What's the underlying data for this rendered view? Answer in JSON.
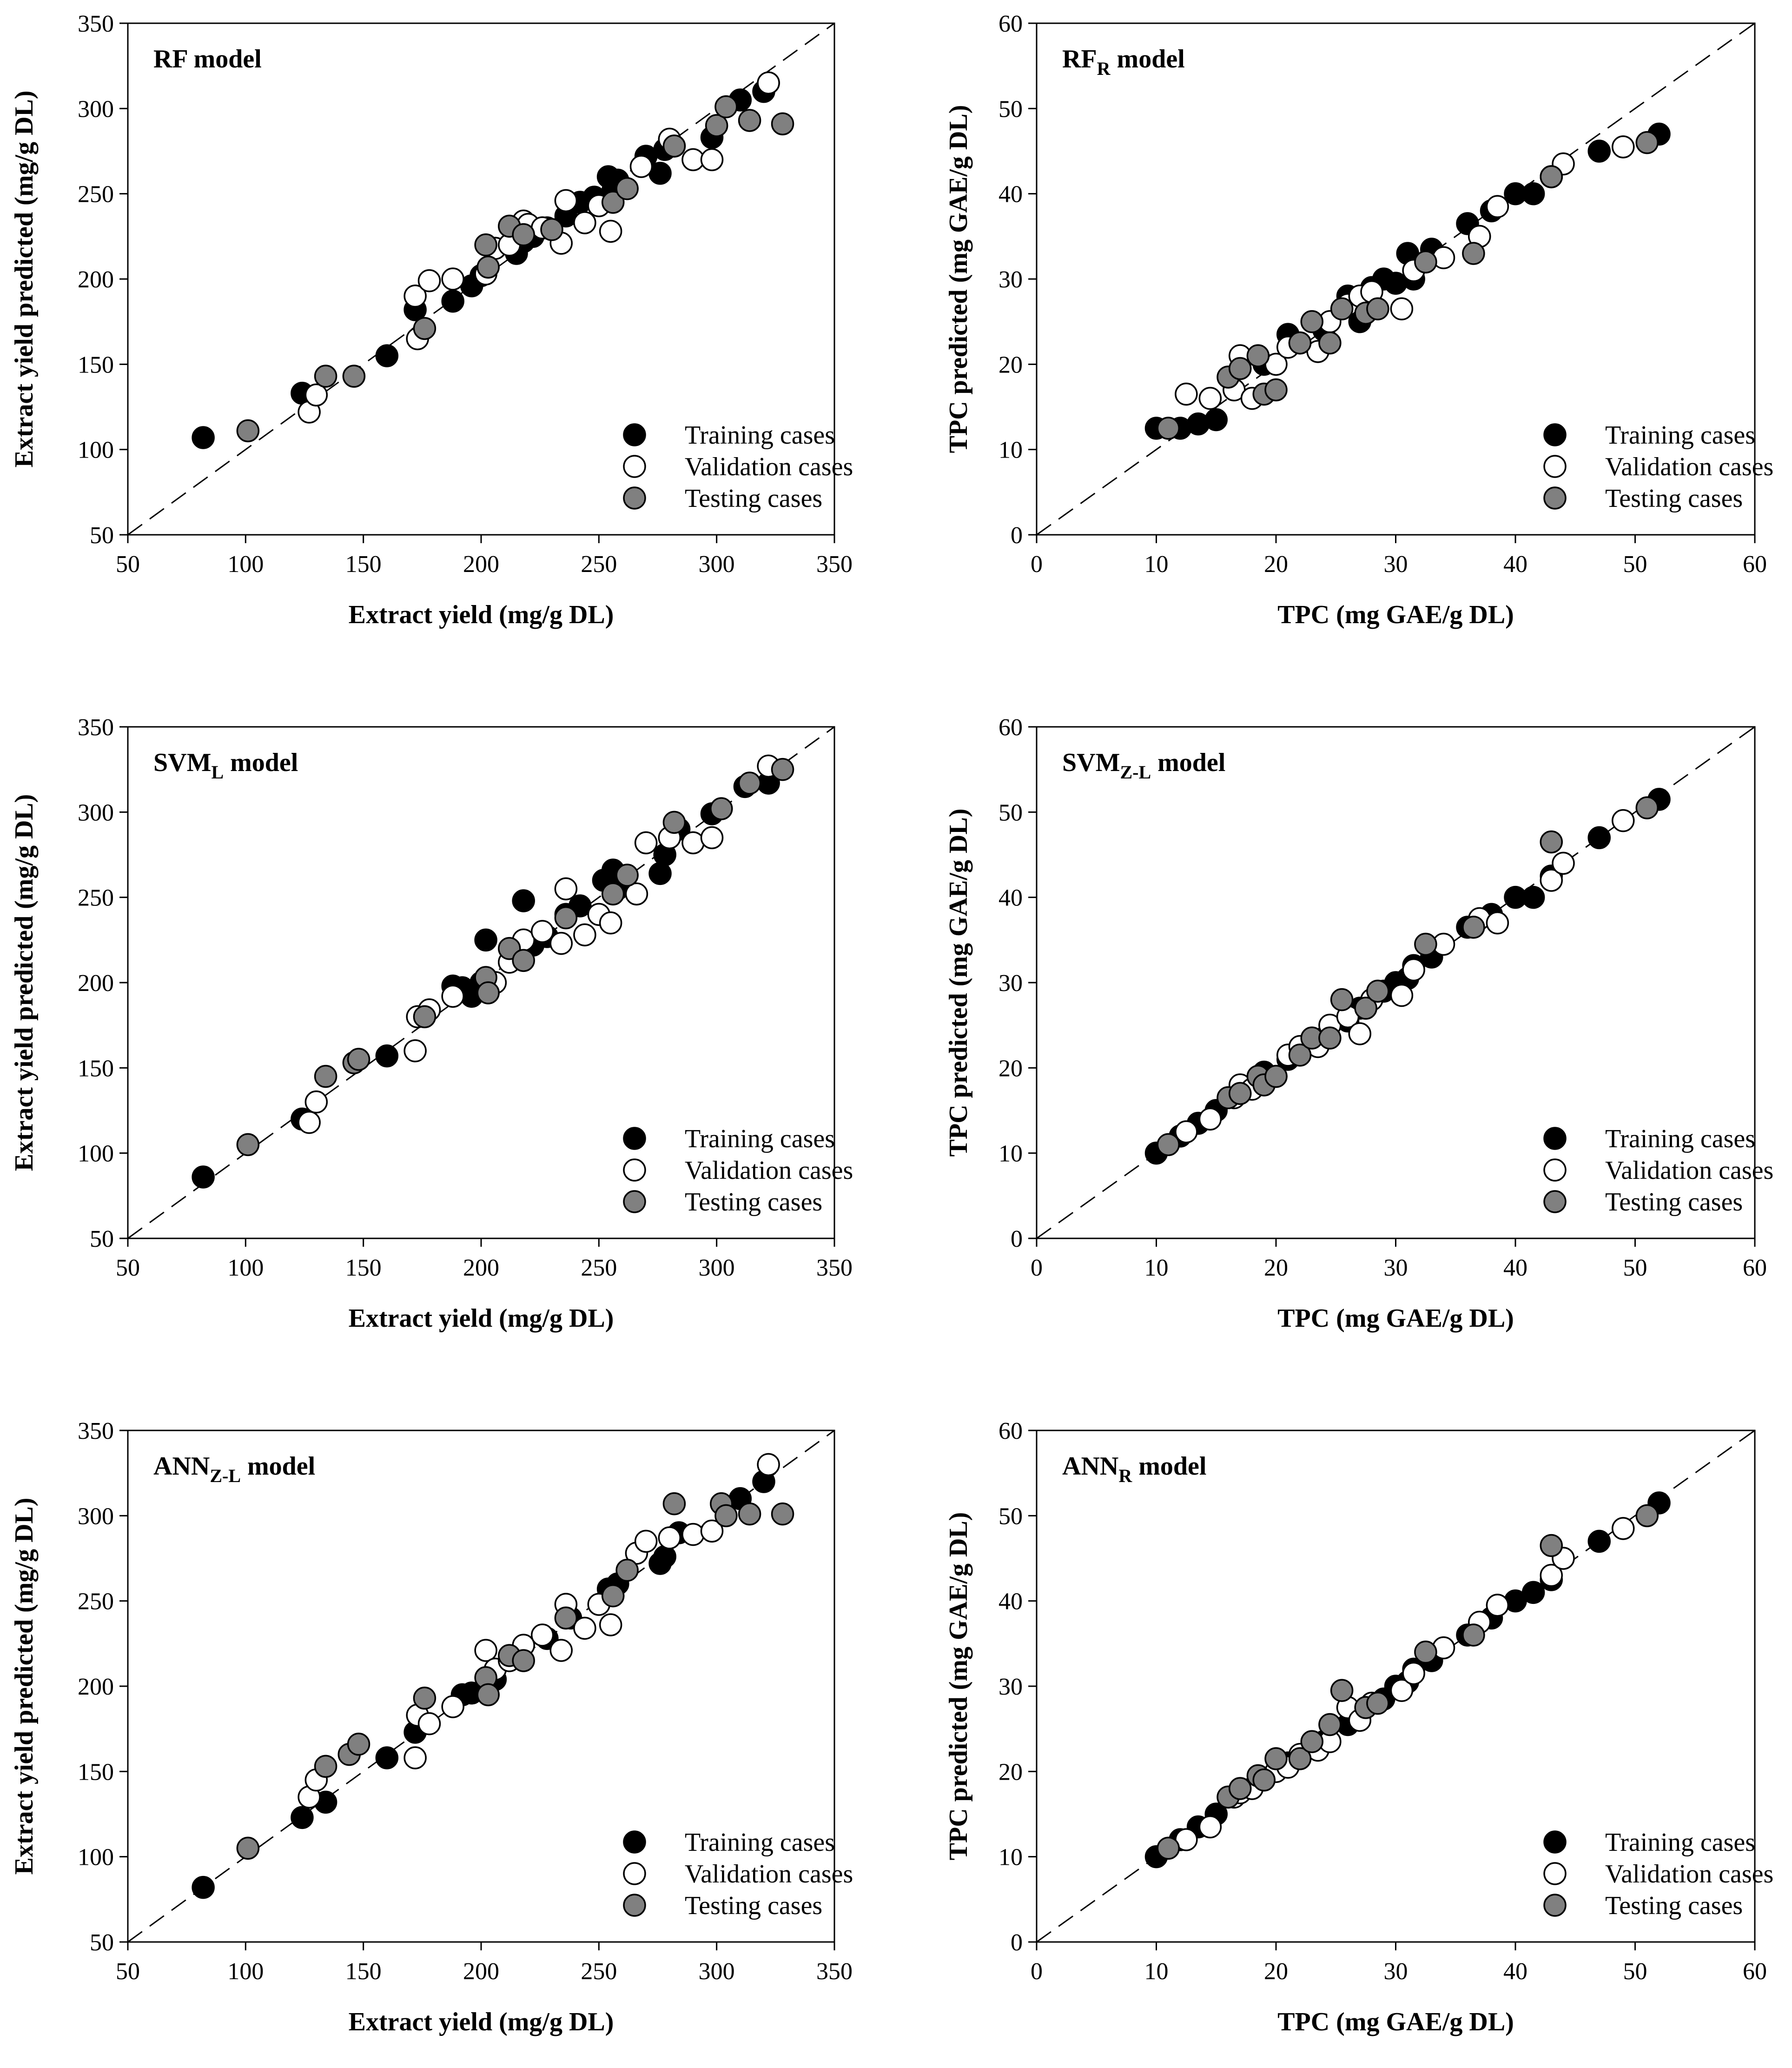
{
  "legend": {
    "training": "Training cases",
    "validation": "Validation cases",
    "testing": "Testing cases"
  },
  "colors": {
    "training": "#000000",
    "validation": "#ffffff",
    "testing": "#808080",
    "outline": "#000000"
  },
  "chart_data": [
    {
      "type": "scatter",
      "title": {
        "main": "RF model",
        "sub": "",
        "rest": ""
      },
      "xlabel": "Extract yield (mg/g DL)",
      "ylabel": "Extract yield predicted (mg/g DL)",
      "xlim": [
        50,
        350
      ],
      "ylim": [
        50,
        350
      ],
      "ticks": [
        50,
        100,
        150,
        200,
        250,
        300,
        350
      ],
      "series": [
        {
          "name": "training",
          "x": [
            82,
            124,
            160,
            172,
            188,
            196,
            200,
            215,
            218,
            222,
            228,
            236,
            242,
            248,
            254,
            256,
            258,
            270,
            276,
            278,
            282,
            298,
            310,
            320,
            322
          ],
          "y": [
            107,
            133,
            155,
            182,
            187,
            196,
            202,
            215,
            222,
            225,
            230,
            237,
            245,
            248,
            260,
            252,
            258,
            272,
            262,
            276,
            278,
            283,
            305,
            310,
            315
          ]
        },
        {
          "name": "validation",
          "x": [
            127,
            130,
            172,
            173,
            178,
            188,
            202,
            206,
            212,
            218,
            220,
            226,
            234,
            236,
            244,
            250,
            255,
            268,
            280,
            290,
            298,
            322
          ],
          "y": [
            122,
            132,
            190,
            165,
            199,
            200,
            203,
            218,
            220,
            234,
            232,
            230,
            221,
            246,
            233,
            243,
            228,
            266,
            282,
            270,
            270,
            315
          ]
        },
        {
          "name": "testing",
          "x": [
            101,
            134,
            146,
            176,
            202,
            203,
            212,
            218,
            230,
            256,
            262,
            282,
            300,
            304,
            314,
            328
          ],
          "y": [
            111,
            143,
            143,
            171,
            220,
            207,
            231,
            226,
            229,
            245,
            253,
            278,
            290,
            301,
            293,
            291
          ]
        }
      ]
    },
    {
      "type": "scatter",
      "title": {
        "main": "RF",
        "sub": "R",
        "rest": " model"
      },
      "xlabel": "TPC (mg GAE/g DL)",
      "ylabel": "TPC predicted (mg GAE/g DL)",
      "xlim": [
        0,
        60
      ],
      "ylim": [
        0,
        60
      ],
      "ticks": [
        0,
        10,
        20,
        30,
        40,
        50,
        60
      ],
      "series": [
        {
          "name": "training",
          "x": [
            10,
            12,
            13.5,
            15,
            19,
            21,
            24,
            26,
            27,
            28,
            29,
            30,
            31,
            31.5,
            33,
            36,
            38,
            40,
            41.5,
            43,
            47,
            52
          ],
          "y": [
            12.5,
            12.5,
            13,
            13.5,
            20,
            23.5,
            24,
            28,
            25,
            29,
            30,
            29.5,
            33,
            30,
            33.5,
            36.5,
            38,
            40,
            40,
            42,
            45,
            47
          ]
        },
        {
          "name": "validation",
          "x": [
            12.5,
            14.5,
            16.5,
            17,
            18,
            20,
            21,
            22,
            23.5,
            24.5,
            26,
            27,
            28,
            30.5,
            31.5,
            34,
            37,
            38.5,
            43,
            44,
            49
          ],
          "y": [
            16.5,
            16,
            17,
            21,
            16,
            20,
            22,
            22.5,
            21.5,
            25,
            27,
            28,
            28.5,
            26.5,
            31,
            32.5,
            35,
            38.5,
            42,
            43.5,
            45.5
          ]
        },
        {
          "name": "testing",
          "x": [
            11,
            16,
            17,
            18.5,
            19,
            20,
            22,
            23,
            24.5,
            25.5,
            27.5,
            28.5,
            32.5,
            36.5,
            43,
            51
          ],
          "y": [
            12.5,
            18.5,
            19.5,
            21,
            16.5,
            17,
            22.5,
            25,
            22.5,
            26.5,
            26,
            26.5,
            32,
            33,
            42,
            46
          ]
        }
      ]
    },
    {
      "type": "scatter",
      "title": {
        "main": "SVM",
        "sub": "L",
        "rest": " model"
      },
      "xlabel": "Extract yield (mg/g DL)",
      "ylabel": "Extract yield predicted (mg/g DL)",
      "xlim": [
        50,
        350
      ],
      "ylim": [
        50,
        350
      ],
      "ticks": [
        50,
        100,
        150,
        200,
        250,
        300,
        350
      ],
      "series": [
        {
          "name": "training",
          "x": [
            82,
            124,
            160,
            188,
            192,
            196,
            200,
            202,
            218,
            222,
            228,
            236,
            242,
            252,
            256,
            258,
            276,
            278,
            284,
            298,
            312,
            322
          ],
          "y": [
            86,
            120,
            157,
            198,
            197,
            192,
            200,
            225,
            248,
            222,
            227,
            240,
            245,
            260,
            266,
            255,
            264,
            275,
            290,
            299,
            315,
            317
          ]
        },
        {
          "name": "validation",
          "x": [
            127,
            130,
            172,
            173,
            178,
            188,
            202,
            206,
            212,
            218,
            226,
            234,
            236,
            244,
            250,
            255,
            266,
            270,
            280,
            290,
            298,
            322
          ],
          "y": [
            118,
            130,
            160,
            180,
            184,
            192,
            202,
            200,
            212,
            225,
            230,
            223,
            255,
            228,
            240,
            235,
            252,
            282,
            285,
            282,
            285,
            327
          ]
        },
        {
          "name": "testing",
          "x": [
            101,
            134,
            146,
            148,
            176,
            202,
            203,
            212,
            218,
            236,
            256,
            262,
            282,
            302,
            314,
            328
          ],
          "y": [
            105,
            145,
            153,
            155,
            180,
            203,
            194,
            220,
            213,
            238,
            252,
            263,
            294,
            302,
            317,
            325
          ]
        }
      ]
    },
    {
      "type": "scatter",
      "title": {
        "main": "SVM",
        "sub": "Z-L",
        "rest": " model"
      },
      "xlabel": "TPC (mg GAE/g DL)",
      "ylabel": "TPC predicted (mg GAE/g DL)",
      "xlim": [
        0,
        60
      ],
      "ylim": [
        0,
        60
      ],
      "ticks": [
        0,
        10,
        20,
        30,
        40,
        50,
        60
      ],
      "series": [
        {
          "name": "training",
          "x": [
            10,
            12,
            13.5,
            15,
            19,
            21,
            24,
            26,
            27,
            28,
            29,
            30,
            31,
            31.5,
            33,
            36,
            38,
            40,
            41.5,
            43,
            47,
            52
          ],
          "y": [
            10,
            12,
            13.5,
            15,
            19.5,
            21,
            23.5,
            25.5,
            27,
            28,
            29,
            30,
            30.5,
            32,
            33,
            36.5,
            38,
            40,
            40,
            42.5,
            47,
            51.5
          ]
        },
        {
          "name": "validation",
          "x": [
            12.5,
            14.5,
            16.5,
            17,
            18,
            20,
            21,
            22,
            23.5,
            24.5,
            26,
            27,
            28,
            30.5,
            31.5,
            34,
            37,
            38.5,
            43,
            44,
            49
          ],
          "y": [
            12.5,
            14,
            16.5,
            18,
            17.5,
            19,
            21.5,
            22.5,
            22.5,
            25,
            26,
            24,
            28,
            28.5,
            31.5,
            34.5,
            37.5,
            37,
            42,
            44,
            49
          ]
        },
        {
          "name": "testing",
          "x": [
            11,
            16,
            17,
            18.5,
            19,
            20,
            22,
            23,
            24.5,
            25.5,
            27.5,
            28.5,
            32.5,
            36.5,
            43,
            51
          ],
          "y": [
            11,
            16.5,
            17,
            19,
            18,
            19,
            21.5,
            23.5,
            23.5,
            28,
            27,
            29,
            34.5,
            36.5,
            46.5,
            50.5
          ]
        }
      ]
    },
    {
      "type": "scatter",
      "title": {
        "main": "ANN",
        "sub": "Z-L",
        "rest": " model"
      },
      "xlabel": "Extract yield (mg/g DL)",
      "ylabel": "Extract yield predicted (mg/g DL)",
      "xlim": [
        50,
        350
      ],
      "ylim": [
        50,
        350
      ],
      "ticks": [
        50,
        100,
        150,
        200,
        250,
        300,
        350
      ],
      "series": [
        {
          "name": "training",
          "x": [
            82,
            124,
            134,
            160,
            172,
            192,
            196,
            206,
            228,
            238,
            254,
            258,
            276,
            278,
            284,
            310,
            320
          ],
          "y": [
            82,
            123,
            132,
            158,
            173,
            195,
            196,
            204,
            228,
            240,
            257,
            260,
            272,
            276,
            290,
            310,
            320
          ]
        },
        {
          "name": "validation",
          "x": [
            127,
            130,
            172,
            173,
            178,
            188,
            202,
            206,
            212,
            218,
            226,
            234,
            236,
            244,
            250,
            255,
            266,
            270,
            280,
            290,
            298,
            322
          ],
          "y": [
            135,
            145,
            158,
            183,
            178,
            188,
            221,
            210,
            215,
            224,
            230,
            221,
            248,
            234,
            248,
            236,
            278,
            285,
            287,
            289,
            291,
            330
          ]
        },
        {
          "name": "testing",
          "x": [
            101,
            134,
            144,
            148,
            176,
            202,
            203,
            212,
            218,
            236,
            256,
            262,
            282,
            302,
            304,
            314,
            328
          ],
          "y": [
            105,
            153,
            160,
            166,
            193,
            205,
            195,
            218,
            215,
            240,
            253,
            268,
            307,
            307,
            300,
            301,
            301
          ]
        }
      ]
    },
    {
      "type": "scatter",
      "title": {
        "main": "ANN",
        "sub": "R",
        "rest": " model"
      },
      "xlabel": "TPC (mg GAE/g DL)",
      "ylabel": "TPC predicted (mg GAE/g DL)",
      "xlim": [
        0,
        60
      ],
      "ylim": [
        0,
        60
      ],
      "ticks": [
        0,
        10,
        20,
        30,
        40,
        50,
        60
      ],
      "series": [
        {
          "name": "training",
          "x": [
            10,
            12,
            13.5,
            15,
            19,
            21,
            24,
            26,
            27,
            28,
            29,
            30,
            31,
            31.5,
            33,
            36,
            38,
            40,
            41.5,
            43,
            47,
            52
          ],
          "y": [
            10,
            12,
            13.5,
            15,
            19,
            21,
            23.5,
            25.5,
            27,
            28,
            28.5,
            30,
            30.5,
            32,
            33,
            36,
            38,
            40,
            41,
            42.5,
            47,
            51.5
          ]
        },
        {
          "name": "validation",
          "x": [
            12.5,
            14.5,
            16.5,
            17,
            18,
            20,
            21,
            22,
            23.5,
            24.5,
            26,
            27,
            28,
            30.5,
            31.5,
            34,
            37,
            38.5,
            43,
            44,
            49
          ],
          "y": [
            12,
            13.5,
            17,
            17.5,
            18,
            20,
            20.5,
            22,
            22.5,
            23.5,
            27.5,
            26,
            28,
            29.5,
            31.5,
            34.5,
            37.5,
            39.5,
            43,
            45,
            48.5
          ]
        },
        {
          "name": "testing",
          "x": [
            11,
            16,
            17,
            18.5,
            19,
            20,
            22,
            23,
            24.5,
            25.5,
            27.5,
            28.5,
            32.5,
            36.5,
            43,
            51
          ],
          "y": [
            11,
            17,
            18,
            19.5,
            19,
            21.5,
            21.5,
            23.5,
            25.5,
            29.5,
            27.5,
            28,
            34,
            36,
            46.5,
            50
          ]
        }
      ]
    }
  ]
}
